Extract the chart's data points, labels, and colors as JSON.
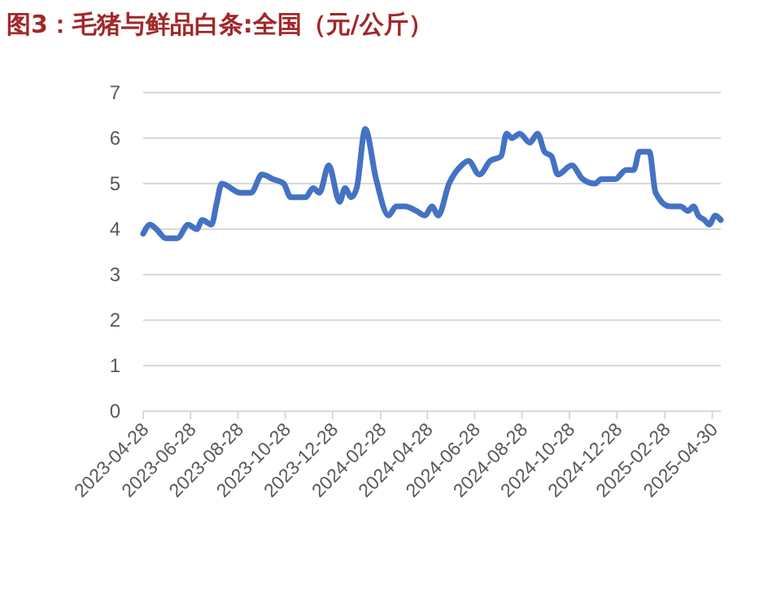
{
  "chart_data": {
    "type": "line",
    "title": "图3：毛猪与鲜品白条:全国（元/公斤）",
    "x": [
      "2023-04-28",
      "2023-05-07",
      "2023-05-15",
      "2023-05-27",
      "2023-06-11",
      "2023-06-25",
      "2023-07-06",
      "2023-07-13",
      "2023-07-25",
      "2023-08-01",
      "2023-08-07",
      "2023-08-31",
      "2023-09-14",
      "2023-09-28",
      "2023-10-12",
      "2023-10-26",
      "2023-11-04",
      "2023-11-23",
      "2023-12-03",
      "2023-12-11",
      "2023-12-23",
      "2024-01-06",
      "2024-01-13",
      "2024-01-21",
      "2024-01-28",
      "2024-02-08",
      "2024-02-22",
      "2024-03-09",
      "2024-03-19",
      "2024-03-30",
      "2024-04-14",
      "2024-04-25",
      "2024-05-04",
      "2024-05-12",
      "2024-05-26",
      "2024-06-11",
      "2024-06-20",
      "2024-07-04",
      "2024-07-18",
      "2024-08-01",
      "2024-08-08",
      "2024-08-15",
      "2024-08-25",
      "2024-09-07",
      "2024-09-17",
      "2024-09-26",
      "2024-10-05",
      "2024-10-13",
      "2024-10-31",
      "2024-11-14",
      "2024-11-30",
      "2024-12-08",
      "2024-12-15",
      "2024-12-26",
      "2025-01-09",
      "2025-01-19",
      "2025-01-26",
      "2025-02-08",
      "2025-02-16",
      "2025-03-06",
      "2025-03-20",
      "2025-03-30",
      "2025-04-06",
      "2025-04-12",
      "2025-04-20",
      "2025-04-26",
      "2025-05-04",
      "2025-05-11"
    ],
    "series": [
      {
        "color": "#4472c4",
        "values": [
          3.9,
          4.1,
          4.0,
          3.8,
          3.8,
          4.1,
          4.0,
          4.2,
          4.1,
          4.6,
          5.0,
          4.8,
          4.8,
          5.2,
          5.1,
          5.0,
          4.7,
          4.7,
          4.9,
          4.8,
          5.4,
          4.6,
          4.9,
          4.7,
          4.9,
          6.2,
          5.1,
          4.3,
          4.5,
          4.5,
          4.4,
          4.3,
          4.5,
          4.3,
          5.0,
          5.4,
          5.5,
          5.2,
          5.5,
          5.6,
          6.1,
          6.0,
          6.1,
          5.9,
          6.1,
          5.7,
          5.6,
          5.2,
          5.4,
          5.1,
          5.0,
          5.1,
          5.1,
          5.1,
          5.3,
          5.3,
          5.7,
          5.7,
          4.8,
          4.5,
          4.5,
          4.4,
          4.5,
          4.3,
          4.2,
          4.1,
          4.3,
          4.2
        ]
      }
    ],
    "xlim": [
      "2023-04-28",
      "2025-05-11"
    ],
    "xticks": [
      "2023-04-28",
      "2023-06-28",
      "2023-08-28",
      "2023-10-28",
      "2023-12-28",
      "2024-02-28",
      "2024-04-28",
      "2024-06-28",
      "2024-08-28",
      "2024-10-28",
      "2024-12-28",
      "2025-02-28",
      "2025-04-30"
    ],
    "ylim": [
      0,
      7
    ],
    "yticks": [
      0,
      1,
      2,
      3,
      4,
      5,
      6,
      7
    ],
    "grid": "y",
    "marker": "none",
    "line_style": "solid"
  }
}
